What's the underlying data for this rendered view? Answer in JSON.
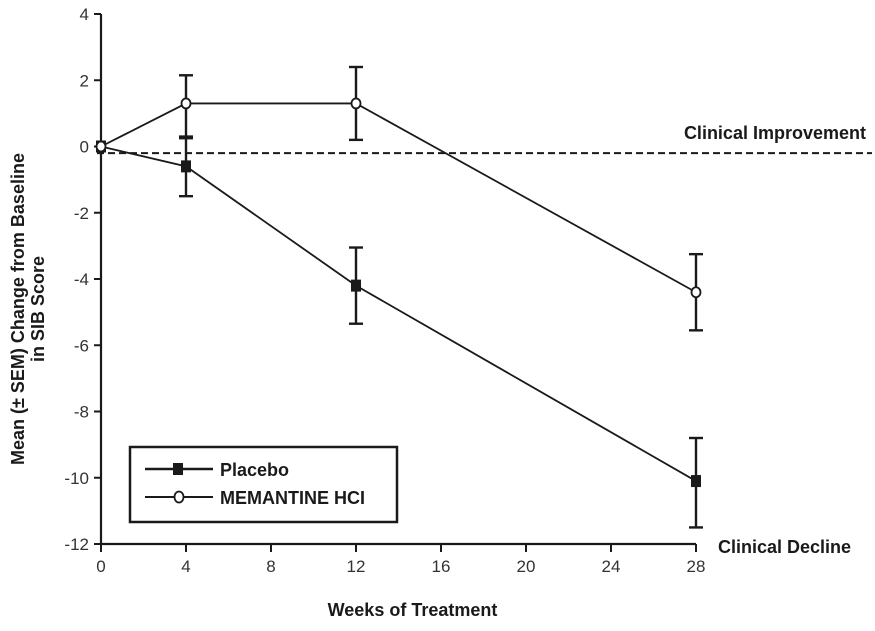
{
  "chart_data": {
    "type": "line",
    "title": "",
    "xlabel": "Weeks of Treatment",
    "ylabel_line1": "Mean (± SEM) Change from Baseline",
    "ylabel_line2": "in SIB Score",
    "xlim": [
      0,
      28
    ],
    "ylim": [
      -12,
      4
    ],
    "xticks": [
      0,
      4,
      8,
      12,
      16,
      20,
      24,
      28
    ],
    "xtick_labels": [
      "0",
      "4",
      "8",
      "12",
      "16",
      "20",
      "24",
      "28"
    ],
    "yticks": [
      4,
      2,
      0,
      -2,
      -4,
      -6,
      -8,
      -10,
      -12
    ],
    "ytick_labels": [
      "4",
      "2",
      "0",
      "-2",
      "-4",
      "-6",
      "-8",
      "-10",
      "-12"
    ],
    "grid": false,
    "reference_line": {
      "y": -0.2,
      "style": "dashed"
    },
    "annotations": [
      {
        "text": "Clinical Improvement",
        "near": "reference-line-right"
      },
      {
        "text": "Clinical Decline",
        "near": "x-axis-right"
      }
    ],
    "legend": {
      "placement": "bottom-left"
    },
    "series": [
      {
        "name": "Placebo",
        "marker": "filled-square",
        "x": [
          0,
          4,
          12,
          28
        ],
        "values": [
          0,
          -0.6,
          -4.2,
          -10.1
        ],
        "err_upper": [
          0,
          0.3,
          -3.05,
          -8.8
        ],
        "err_lower": [
          0,
          -1.5,
          -5.35,
          -11.5
        ]
      },
      {
        "name": "MEMANTINE HCI",
        "marker": "open-circle",
        "x": [
          0,
          4,
          12,
          28
        ],
        "values": [
          0,
          1.3,
          1.3,
          -4.4
        ],
        "err_upper": [
          0,
          2.15,
          2.4,
          -3.25
        ],
        "err_lower": [
          0,
          0.25,
          0.2,
          -5.55
        ]
      }
    ],
    "colors": {
      "line": "#1a1a1a",
      "text": "#1a1a1a"
    }
  }
}
